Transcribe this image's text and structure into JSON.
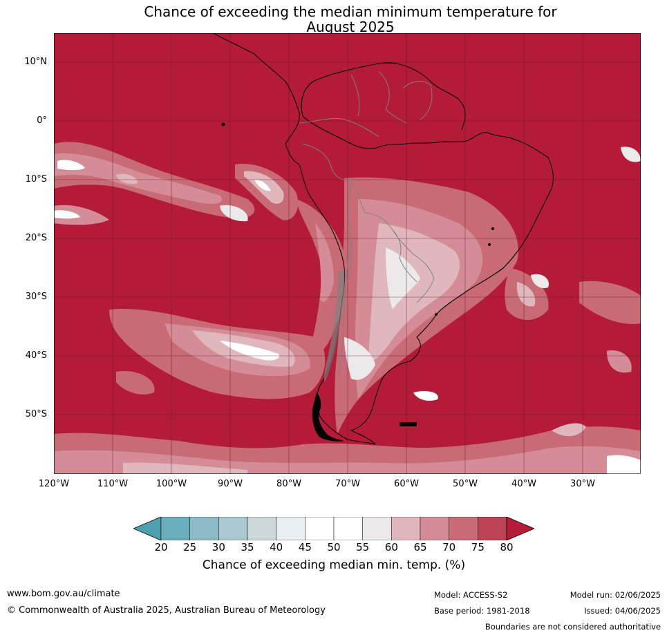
{
  "title_line1": "Chance of exceeding the median minimum temperature for",
  "title_line2": "August 2025",
  "lat_labels": [
    "10°N",
    "0°",
    "10°S",
    "20°S",
    "30°S",
    "40°S",
    "50°S"
  ],
  "lon_labels": [
    "120°W",
    "110°W",
    "100°W",
    "90°W",
    "80°W",
    "70°W",
    "60°W",
    "50°W",
    "40°W",
    "30°W"
  ],
  "colorbar": {
    "ticks": [
      "20",
      "25",
      "30",
      "35",
      "40",
      "45",
      "50",
      "55",
      "60",
      "65",
      "70",
      "75",
      "80"
    ],
    "colors": [
      "#4da0b0",
      "#6aaebe",
      "#8cbac6",
      "#aac8cf",
      "#ccd8dc",
      "#e9eff2",
      "#ffffff",
      "#ffffff",
      "#ebe9ea",
      "#e0b7bd",
      "#d48d96",
      "#c86b76",
      "#bd4253",
      "#b51c38"
    ],
    "label": "Chance of exceeding median min. temp. (%)"
  },
  "map_colors": {
    "dominant": "#b31b38",
    "level_75": "#bd4253",
    "level_70": "#c86b76",
    "level_65": "#d48d96",
    "level_60": "#e0b7bd",
    "level_55": "#ebe9ea",
    "level_50": "#ffffff"
  },
  "footer": {
    "website": "www.bom.gov.au/climate",
    "copyright": "© Commonwealth of Australia 2025, Australian Bureau of Meteorology",
    "model": "Model: ACCESS-S2",
    "base_period": "Base period: 1981-2018",
    "model_run": "Model run: 02/06/2025",
    "issued": "Issued: 04/06/2025",
    "disclaimer": "Boundaries are not considered authoritative"
  }
}
